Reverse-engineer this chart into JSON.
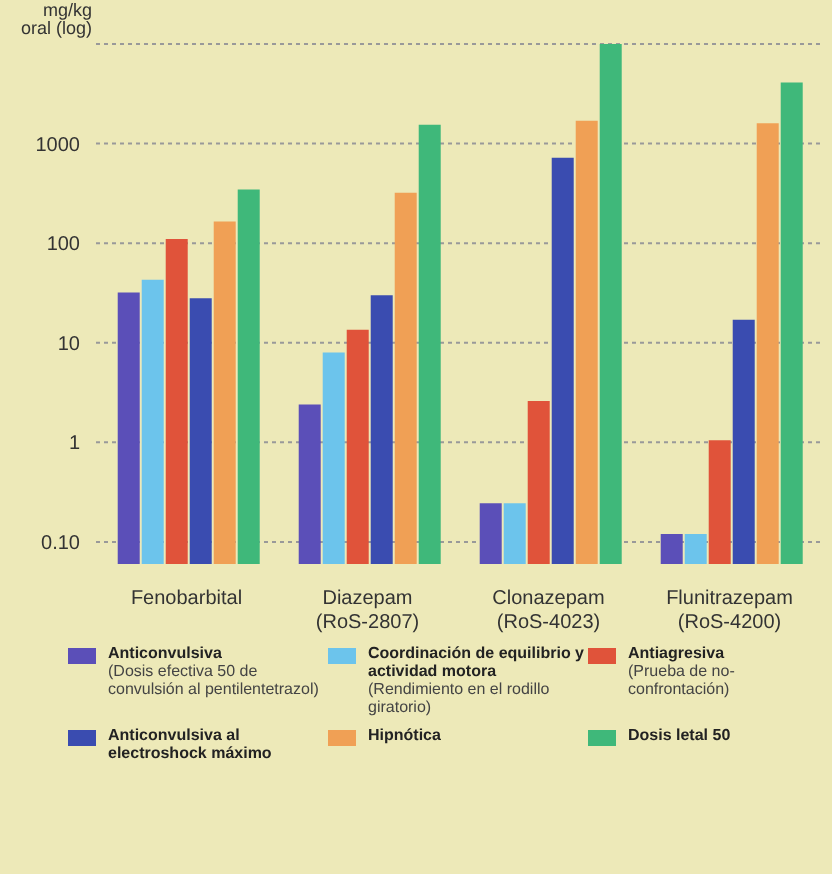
{
  "chart_data": {
    "type": "bar",
    "ylabel": "mg/kg oral (log)",
    "categories": [
      "Fenobarbital",
      "Diazepam\n(RoS-2807)",
      "Clonazepam\n(RoS-4023)",
      "Flunitrazepam\n(RoS-4200)"
    ],
    "series": [
      {
        "name": "Anticonvulsiva\n(Dosis efectiva 50 de convulsión al pentilentetrazol)",
        "color": "#5b4fb8",
        "values": [
          32,
          2.4,
          0.245,
          0.12
        ]
      },
      {
        "name": "Coordinación de equilibrio y actividad motora\n(Rendimiento en el rodillo giratorio)",
        "color": "#6cc4ec",
        "values": [
          43,
          8,
          0.245,
          0.12
        ]
      },
      {
        "name": "Antiagresiva\n(Prueba de no-confrontación)",
        "color": "#e0533a",
        "values": [
          110,
          13.5,
          2.6,
          1.05
        ]
      },
      {
        "name": "Anticonvulsiva al electroshock máximo",
        "color": "#3a4cb0",
        "values": [
          28,
          30,
          720,
          17
        ]
      },
      {
        "name": "Hipnótica",
        "color": "#f0a055",
        "values": [
          165,
          320,
          1700,
          1600
        ]
      },
      {
        "name": "Dosis letal 50",
        "color": "#3fb87a",
        "values": [
          345,
          1550,
          10000,
          4100
        ]
      }
    ],
    "log": true,
    "ylim": [
      0.06,
      10000
    ],
    "yticks": [
      {
        "value": 0.1,
        "label": "0.10"
      },
      1,
      10,
      100,
      1000,
      {
        "value": 10000,
        "label": null
      }
    ],
    "grid": "y",
    "legend": "bottom"
  }
}
